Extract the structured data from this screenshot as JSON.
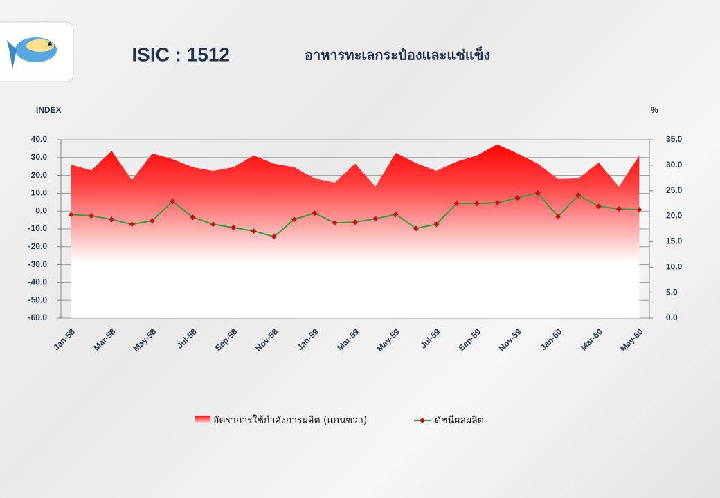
{
  "chart_data": {
    "type": "combo",
    "title": "ISIC : 1512",
    "subtitle": "อาหารทะเลกระป๋องและแช่แข็ง",
    "ylabel": "INDEX",
    "y2label": "%",
    "categories": [
      "Jan-58",
      null,
      "Mar-58",
      null,
      "May-58",
      null,
      "Jul-58",
      null,
      "Sep-58",
      null,
      "Nov-58",
      null,
      "Jan-59",
      null,
      "Mar-59",
      null,
      "May-59",
      null,
      "Jul-59",
      null,
      "Sep-59",
      null,
      "Nov-59",
      null,
      "Jan-60",
      null,
      "Mar-60",
      null,
      "May-60"
    ],
    "series": [
      {
        "name": "อัตราการใช้กำลังการผลิต (แกนขวา)",
        "type": "area",
        "axis": "y2",
        "color": "#ff0000",
        "values": [
          30.1,
          29.0,
          32.8,
          27.1,
          32.3,
          31.2,
          29.6,
          28.9,
          29.6,
          31.9,
          30.3,
          29.6,
          27.4,
          26.6,
          30.3,
          25.8,
          32.4,
          30.4,
          28.9,
          30.7,
          31.9,
          34.1,
          32.3,
          30.3,
          27.3,
          27.4,
          30.5,
          25.8,
          31.9
        ]
      },
      {
        "name": "ดัชนีผลผลิต",
        "type": "line",
        "color": "#2e9e3e",
        "marker_color": "#cc1010",
        "values": [
          -2.0,
          -2.7,
          -4.7,
          -7.4,
          -5.4,
          5.4,
          -3.5,
          -7.4,
          -9.3,
          -11.2,
          -14.3,
          -4.7,
          -1.2,
          -6.6,
          -6.2,
          -4.3,
          -1.9,
          -9.7,
          -7.4,
          4.3,
          4.3,
          4.7,
          7.4,
          10.1,
          -3.1,
          8.9,
          2.7,
          1.2,
          0.8
        ]
      }
    ],
    "ylim": [
      -60,
      40
    ],
    "yticks": [
      {
        "value": -60,
        "label": "-60.0"
      },
      {
        "value": -50,
        "label": "-50.0"
      },
      {
        "value": -40,
        "label": "-40.0"
      },
      {
        "value": -30,
        "label": "-30.0"
      },
      {
        "value": -20,
        "label": "-20.0"
      },
      {
        "value": -10,
        "label": "-10.0"
      },
      {
        "value": 0,
        "label": "0.0"
      },
      {
        "value": 10,
        "label": "10.0"
      },
      {
        "value": 20,
        "label": "20.0"
      },
      {
        "value": 30,
        "label": "30.0"
      },
      {
        "value": 40,
        "label": "40.0"
      }
    ],
    "y2lim": [
      0,
      35
    ],
    "y2ticks": [
      {
        "value": 0,
        "label": "0.0"
      },
      {
        "value": 5,
        "label": "5.0"
      },
      {
        "value": 10,
        "label": "10.0"
      },
      {
        "value": 15,
        "label": "15.0"
      },
      {
        "value": 20,
        "label": "20.0"
      },
      {
        "value": 25,
        "label": "25.0"
      },
      {
        "value": 30,
        "label": "30.0"
      },
      {
        "value": 35,
        "label": "35.0"
      }
    ],
    "grid": true,
    "legend": "bottom"
  }
}
